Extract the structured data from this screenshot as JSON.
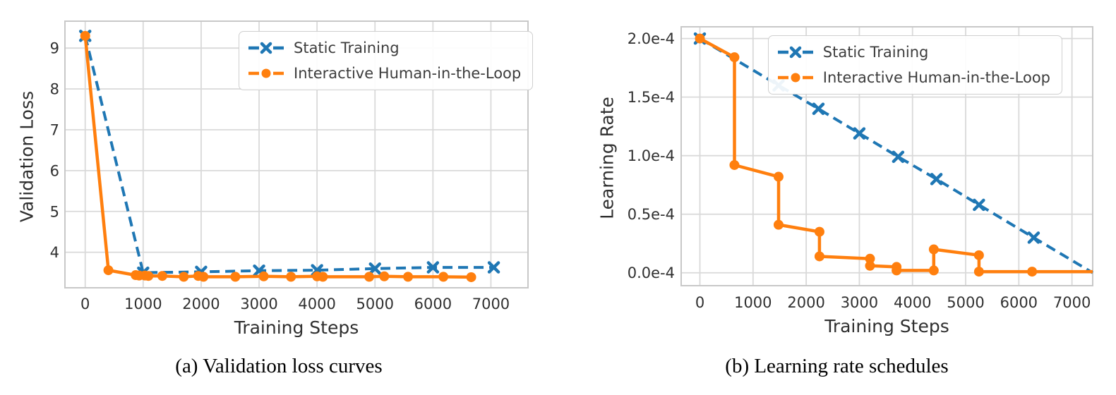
{
  "colors": {
    "static": "#1f77b4",
    "interactive": "#ff7f0e",
    "grid": "#d9d9d9",
    "spine": "#c8c8c8",
    "text": "#303030"
  },
  "captions": {
    "a": "(a) Validation loss curves",
    "b": "(b) Learning rate schedules"
  },
  "chart_data": [
    {
      "id": "validation-loss",
      "type": "line",
      "caption": "(a) Validation loss curves",
      "xlabel": "Training Steps",
      "ylabel": "Validation Loss",
      "xlim": [
        -350,
        7640
      ],
      "ylim": [
        3.13,
        9.66
      ],
      "xticks": [
        0,
        1000,
        2000,
        3000,
        4000,
        5000,
        6000,
        7000
      ],
      "xtick_labels": [
        "0",
        "1000",
        "2000",
        "3000",
        "4000",
        "5000",
        "6000",
        "7000"
      ],
      "yticks": [
        4,
        5,
        6,
        7,
        8,
        9
      ],
      "ytick_labels": [
        "4",
        "5",
        "6",
        "7",
        "8",
        "9"
      ],
      "grid": true,
      "legend_position": "upper right",
      "series": [
        {
          "name": "Static Training",
          "color": "#1f77b4",
          "line_style": "dashed",
          "marker": "x",
          "skip_last_marker": false,
          "x": [
            0,
            1000,
            2000,
            3000,
            4000,
            5000,
            6000,
            7050
          ],
          "y": [
            9.3,
            3.5,
            3.52,
            3.55,
            3.56,
            3.6,
            3.63,
            3.63
          ]
        },
        {
          "name": "Interactive Human-in-the-Loop",
          "color": "#ff7f0e",
          "line_style": "solid",
          "marker": "circle",
          "skip_last_marker": false,
          "x": [
            0,
            400,
            870,
            930,
            1030,
            1090,
            1330,
            1700,
            1950,
            2040,
            2590,
            3080,
            3550,
            4000,
            4100,
            4900,
            5160,
            5570,
            6180,
            6660
          ],
          "y": [
            9.3,
            3.56,
            3.44,
            3.43,
            3.43,
            3.42,
            3.42,
            3.4,
            3.42,
            3.4,
            3.4,
            3.41,
            3.4,
            3.41,
            3.4,
            3.4,
            3.41,
            3.4,
            3.4,
            3.39
          ]
        }
      ]
    },
    {
      "id": "learning-rate",
      "type": "line",
      "caption": "(b) Learning rate schedules",
      "xlabel": "Training Steps",
      "ylabel": "Learning Rate",
      "y_unit": "1e-4",
      "xlim": [
        -352,
        7390
      ],
      "ylim": [
        -0.11,
        2.1
      ],
      "xticks": [
        0,
        1000,
        2000,
        3000,
        4000,
        5000,
        6000,
        7000
      ],
      "xtick_labels": [
        "0",
        "1000",
        "2000",
        "3000",
        "4000",
        "5000",
        "6000",
        "7000"
      ],
      "yticks": [
        0,
        0.5,
        1.0,
        1.5,
        2.0
      ],
      "ytick_labels": [
        "0.0e-4",
        "0.5e-4",
        "1.0e-4",
        "1.5e-4",
        "2.0e-4"
      ],
      "grid": true,
      "legend_position": "upper right",
      "series": [
        {
          "name": "Static Training",
          "color": "#1f77b4",
          "line_style": "dashed",
          "marker": "x",
          "skip_last_marker": true,
          "x": [
            0,
            1480,
            2230,
            3000,
            3730,
            4450,
            5250,
            6280,
            7390
          ],
          "y": [
            2.0,
            1.6,
            1.4,
            1.19,
            0.99,
            0.8,
            0.58,
            0.3,
            0.0
          ]
        },
        {
          "name": "Interactive Human-in-the-Loop",
          "color": "#ff7f0e",
          "line_style": "solid",
          "marker": "circle",
          "skip_last_marker": true,
          "x": [
            0,
            650,
            650,
            1480,
            1480,
            2250,
            2250,
            3200,
            3200,
            3700,
            3700,
            4400,
            4400,
            5250,
            5250,
            6250,
            7390
          ],
          "y": [
            2.0,
            1.84,
            0.92,
            0.82,
            0.41,
            0.35,
            0.14,
            0.12,
            0.06,
            0.05,
            0.02,
            0.02,
            0.2,
            0.15,
            0.01,
            0.01,
            0.01
          ]
        }
      ]
    }
  ]
}
